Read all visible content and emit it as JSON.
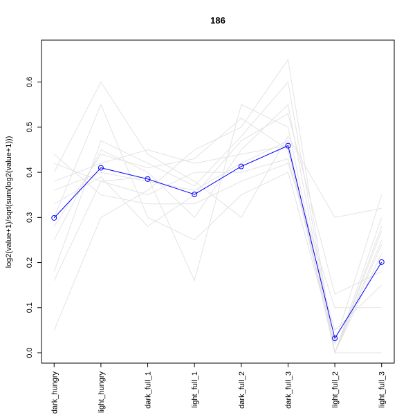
{
  "chart_data": {
    "type": "line",
    "title": "186",
    "y_label": "log2(value+1)/sqrt(sum(log2(value+1)))",
    "categories": [
      "dark_hungry",
      "light_hungry",
      "dark_full_1",
      "light_full_1",
      "dark_full_2",
      "dark_full_3",
      "light_full_2",
      "light_full_3"
    ],
    "ylim": [
      -0.023,
      0.693
    ],
    "yticks": [
      {
        "value": 0,
        "label": "0.0"
      },
      0.1,
      0.2,
      0.3,
      0.4,
      0.5,
      0.6
    ],
    "series": [
      {
        "color": "#e3e3e3",
        "values": [
          0.36,
          0.4,
          0.38,
          0.36,
          0.42,
          0.47,
          0.0,
          0.22
        ]
      },
      {
        "color": "#e3e3e3",
        "values": [
          0.25,
          0.45,
          0.4,
          0.3,
          0.45,
          0.55,
          0.0,
          0.28
        ]
      },
      {
        "color": "#e3e3e3",
        "values": [
          0.42,
          0.38,
          0.35,
          0.4,
          0.4,
          0.43,
          0.05,
          0.15
        ]
      },
      {
        "color": "#e3e3e3",
        "values": [
          0.18,
          0.47,
          0.42,
          0.37,
          0.48,
          0.6,
          0.0,
          0.25
        ]
      },
      {
        "color": "#e3e3e3",
        "values": [
          0.44,
          0.35,
          0.33,
          0.33,
          0.38,
          0.42,
          0.1,
          0.1
        ]
      },
      {
        "color": "#e3e3e3",
        "values": [
          0.05,
          0.3,
          0.36,
          0.45,
          0.5,
          0.65,
          0.0,
          0.0
        ]
      },
      {
        "color": "#e3e3e3",
        "values": [
          0.3,
          0.55,
          0.3,
          0.25,
          0.35,
          0.4,
          0.02,
          0.35
        ]
      },
      {
        "color": "#e3e3e3",
        "values": [
          0.38,
          0.42,
          0.45,
          0.42,
          0.44,
          0.46,
          0.0,
          0.27
        ]
      },
      {
        "color": "#e3e3e3",
        "values": [
          0.16,
          0.38,
          0.39,
          0.16,
          0.55,
          0.5,
          0.0,
          0.3
        ]
      },
      {
        "color": "#e3e3e3",
        "values": [
          0.4,
          0.6,
          0.44,
          0.38,
          0.3,
          0.48,
          0.3,
          0.32
        ]
      },
      {
        "color": "#e3e3e3",
        "values": [
          0.33,
          0.39,
          0.28,
          0.35,
          0.47,
          0.53,
          0.13,
          0.18
        ]
      },
      {
        "color": "#e3e3e3",
        "values": [
          0.28,
          0.44,
          0.41,
          0.43,
          0.52,
          0.45,
          0.0,
          0.24
        ]
      },
      {
        "color": "#0000ff",
        "markers": true,
        "values": [
          0.299,
          0.41,
          0.385,
          0.351,
          0.413,
          0.459,
          0.032,
          0.201
        ]
      }
    ]
  }
}
